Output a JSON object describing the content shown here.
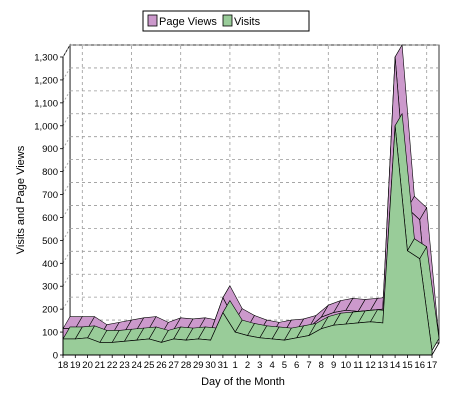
{
  "chart_data": {
    "type": "area",
    "title": "",
    "xlabel": "Day of the Month",
    "ylabel": "Visits and Page Views",
    "ylim": [
      0,
      1300
    ],
    "yticks": [
      0,
      100,
      200,
      300,
      400,
      500,
      600,
      700,
      800,
      900,
      1000,
      1100,
      1200,
      1300
    ],
    "ytick_labels": [
      "0",
      "100",
      "200",
      "300",
      "400",
      "500",
      "600",
      "700",
      "800",
      "900",
      "1,000",
      "1,100",
      "1,200",
      "1,300"
    ],
    "categories": [
      "18",
      "19",
      "20",
      "21",
      "22",
      "23",
      "24",
      "25",
      "26",
      "27",
      "28",
      "29",
      "30",
      "31",
      "1",
      "2",
      "3",
      "4",
      "5",
      "6",
      "7",
      "8",
      "9",
      "10",
      "11",
      "12",
      "13",
      "14",
      "15",
      "16",
      "17"
    ],
    "grid": true,
    "stacked": false,
    "legend_position": "top-center",
    "series": [
      {
        "name": "Page Views",
        "color": "#cc99cc",
        "values": [
          115,
          115,
          115,
          80,
          90,
          100,
          110,
          115,
          90,
          110,
          105,
          110,
          100,
          250,
          150,
          120,
          100,
          90,
          100,
          105,
          120,
          165,
          185,
          195,
          190,
          195,
          200,
          1300,
          640,
          590,
          20
        ]
      },
      {
        "name": "Visits",
        "color": "#99cc99",
        "values": [
          70,
          70,
          75,
          55,
          55,
          60,
          65,
          70,
          55,
          70,
          65,
          70,
          65,
          185,
          100,
          85,
          75,
          70,
          65,
          75,
          85,
          115,
          130,
          135,
          140,
          145,
          140,
          1000,
          455,
          420,
          20
        ]
      }
    ]
  }
}
